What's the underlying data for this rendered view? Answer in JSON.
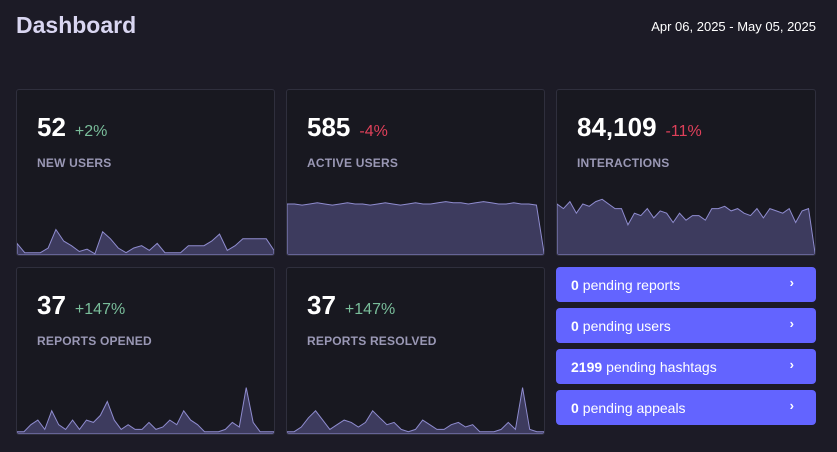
{
  "header": {
    "title": "Dashboard",
    "date_range": "Apr 06, 2025 - May 05, 2025"
  },
  "metrics": [
    {
      "value": "52",
      "delta": "+2%",
      "trend": "positive",
      "label": "NEW USERS",
      "sparkline": [
        10,
        2,
        2,
        2,
        6,
        22,
        12,
        8,
        3,
        5,
        1,
        20,
        14,
        6,
        2,
        6,
        8,
        4,
        10,
        2,
        2,
        2,
        8,
        8,
        8,
        12,
        18,
        4,
        8,
        14,
        14,
        14,
        14,
        4
      ]
    },
    {
      "value": "585",
      "delta": "-4%",
      "trend": "negative",
      "label": "ACTIVE USERS",
      "sparkline": [
        44,
        44,
        43,
        44,
        45,
        44,
        43,
        44,
        45,
        44,
        44,
        43,
        44,
        45,
        44,
        43,
        44,
        45,
        44,
        44,
        45,
        46,
        45,
        45,
        44,
        45,
        46,
        45,
        44,
        44,
        45,
        44,
        44,
        43,
        2
      ]
    },
    {
      "value": "84,109",
      "delta": "-11%",
      "trend": "negative",
      "label": "INTERACTIONS",
      "sparkline": [
        44,
        40,
        46,
        36,
        44,
        42,
        46,
        48,
        44,
        40,
        40,
        26,
        36,
        34,
        40,
        32,
        38,
        36,
        28,
        36,
        30,
        34,
        34,
        30,
        40,
        40,
        42,
        38,
        40,
        36,
        34,
        40,
        32,
        40,
        38,
        36,
        40,
        28,
        38,
        40,
        2
      ]
    },
    {
      "value": "37",
      "delta": "+147%",
      "trend": "positive",
      "label": "REPORTS OPENED",
      "sparkline": [
        2,
        2,
        8,
        12,
        4,
        20,
        8,
        4,
        12,
        4,
        12,
        10,
        16,
        28,
        12,
        4,
        8,
        4,
        4,
        10,
        4,
        6,
        12,
        8,
        20,
        12,
        8,
        2,
        2,
        2,
        4,
        10,
        6,
        40,
        10,
        2,
        2,
        2
      ]
    },
    {
      "value": "37",
      "delta": "+147%",
      "trend": "positive",
      "label": "REPORTS RESOLVED",
      "sparkline": [
        2,
        2,
        6,
        14,
        20,
        12,
        4,
        8,
        12,
        10,
        6,
        10,
        20,
        14,
        8,
        10,
        4,
        2,
        4,
        12,
        8,
        4,
        4,
        8,
        10,
        6,
        8,
        2,
        2,
        2,
        4,
        10,
        4,
        40,
        4,
        2,
        2
      ]
    }
  ],
  "pending": [
    {
      "count": "0",
      "text": "pending reports"
    },
    {
      "count": "0",
      "text": "pending users"
    },
    {
      "count": "2199",
      "text": "pending hashtags"
    },
    {
      "count": "0",
      "text": "pending appeals"
    }
  ],
  "chevron_glyph": "›",
  "colors": {
    "background": "#1c1b26",
    "card": "#181820",
    "accent": "#6364ff",
    "positive": "#79bd9a",
    "negative": "#df405a",
    "sparkline_fill": "#3d3b5e",
    "sparkline_stroke": "#8f8ccf"
  }
}
